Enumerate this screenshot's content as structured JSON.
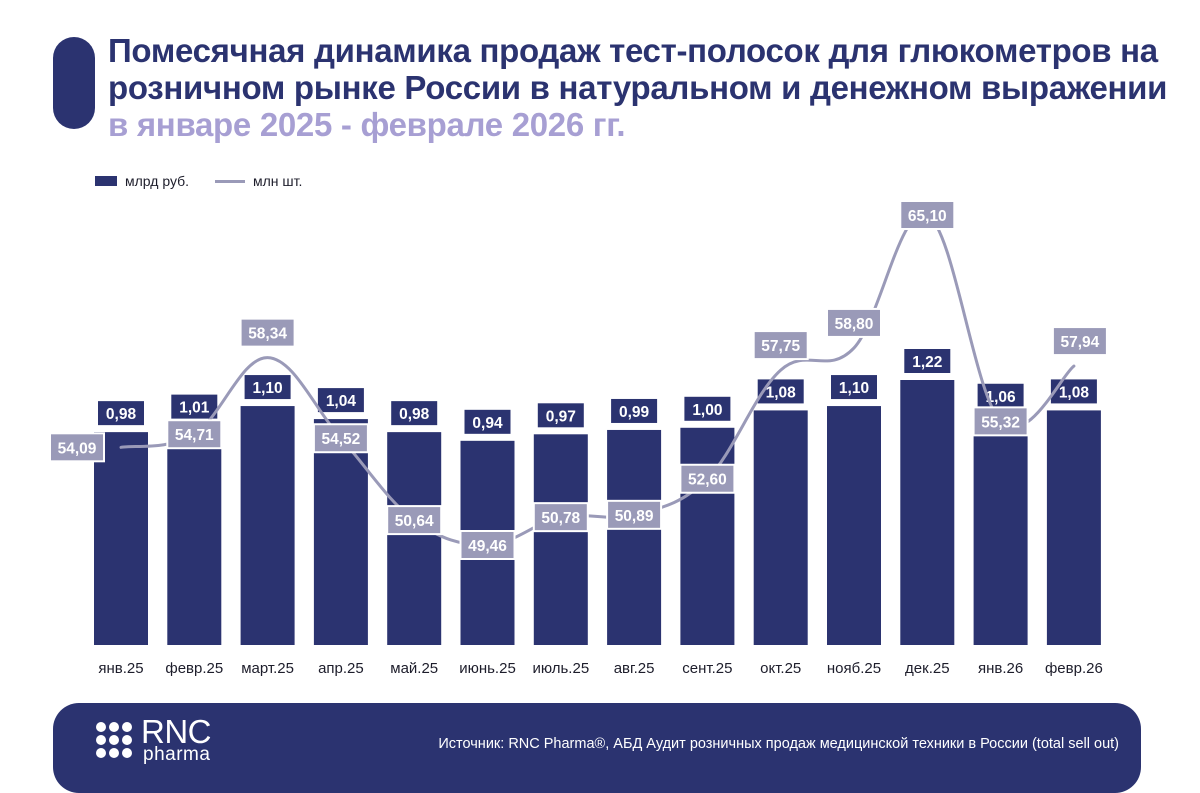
{
  "header": {
    "title_main": "Помесячная динамика продаж тест-полосок для глюкометров на розничном рынке России в натуральном и денежном выражении",
    "title_highlight": "в январе 2025 - феврале 2026 гг."
  },
  "legend": {
    "bar_label": "млрд руб.",
    "line_label": "млн шт."
  },
  "chart_data": {
    "type": "bar+line",
    "title": "Помесячная динамика продаж тест-полосок для глюкометров на розничном рынке России в натуральном и денежном выражении в январе 2025 - феврале 2026 гг.",
    "categories": [
      "янв.25",
      "февр.25",
      "март.25",
      "апр.25",
      "май.25",
      "июнь.25",
      "июль.25",
      "авг.25",
      "сент.25",
      "окт.25",
      "нояб.25",
      "дек.25",
      "янв.26",
      "февр.26"
    ],
    "series": [
      {
        "name": "млрд руб.",
        "type": "bar",
        "values": [
          0.98,
          1.01,
          1.1,
          1.04,
          0.98,
          0.94,
          0.97,
          0.99,
          1.0,
          1.08,
          1.1,
          1.22,
          1.06,
          1.08
        ],
        "labels": [
          "0,98",
          "1,01",
          "1,10",
          "1,04",
          "0,98",
          "0,94",
          "0,97",
          "0,99",
          "1,00",
          "1,08",
          "1,10",
          "1,22",
          "1,06",
          "1,08"
        ]
      },
      {
        "name": "млн шт.",
        "type": "line",
        "values": [
          54.09,
          54.71,
          58.34,
          54.52,
          50.64,
          49.46,
          50.78,
          50.89,
          52.6,
          57.75,
          58.8,
          65.1,
          55.32,
          57.94
        ],
        "labels": [
          "54,09",
          "54,71",
          "58,34",
          "54,52",
          "50,64",
          "49,46",
          "50,78",
          "50,89",
          "52,60",
          "57,75",
          "58,80",
          "65,10",
          "55,32",
          "57,94"
        ]
      }
    ],
    "colors": {
      "bar": "#2b3370",
      "line": "#9a9ab8",
      "line_label_bg": "#9a9ab8"
    },
    "xlabel": "",
    "ylabel": ""
  },
  "footer": {
    "logo_rnc": "RNC",
    "logo_pharma": "pharma",
    "source": "Источник: RNC Pharma®, АБД Аудит розничных продаж медицинской техники в России (total sell out)"
  }
}
